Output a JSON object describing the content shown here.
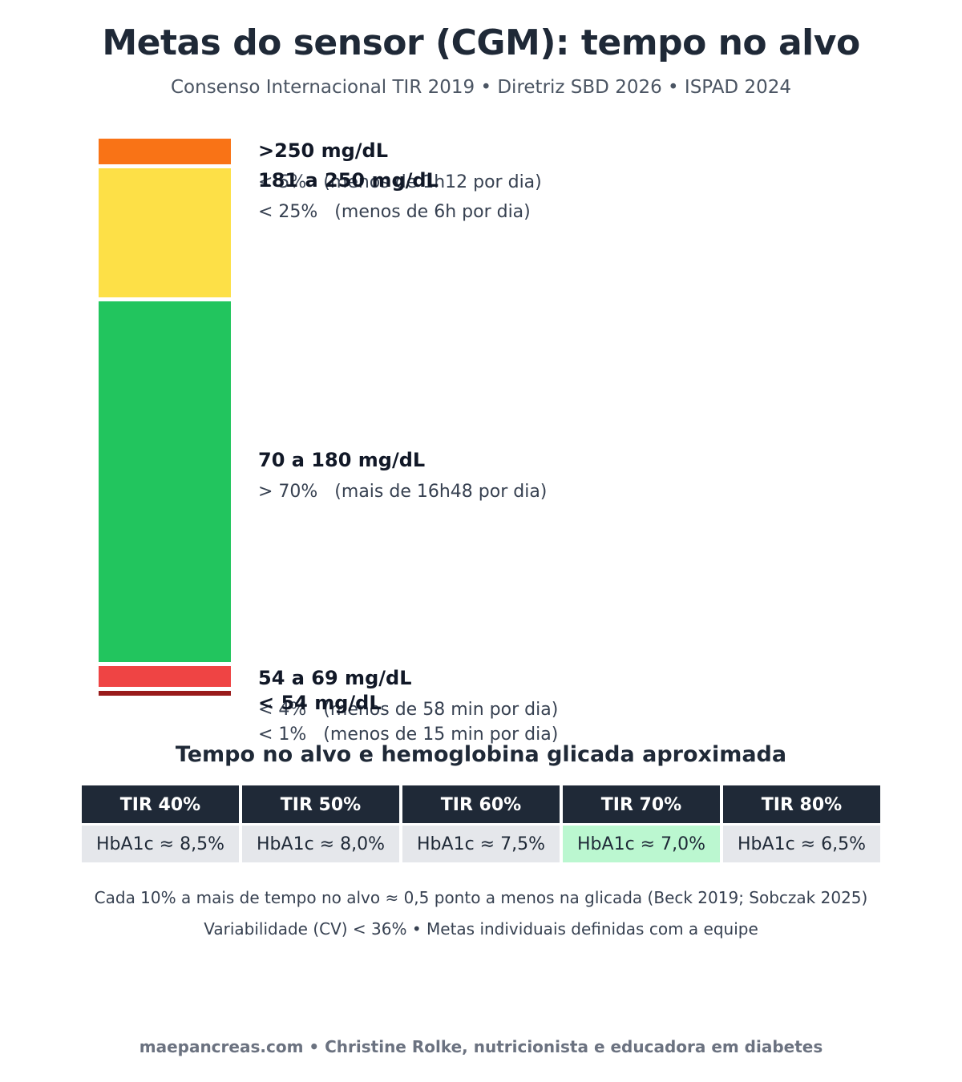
{
  "title": "Metas do sensor (CGM): tempo no alvo",
  "subtitle": "Consenso Internacional TIR 2019 • Diretriz SBD 2026 • ISPAD 2024",
  "chart_data": {
    "type": "bar",
    "stacked": true,
    "segments": [
      {
        "range": ">250 mg/dL",
        "target": "< 5%   (menos de 1h12 por dia)",
        "value": 5,
        "color": "#f97316"
      },
      {
        "range": "181 a 250 mg/dL",
        "target": "< 25%   (menos de 6h por dia)",
        "value": 25,
        "color": "#fde047"
      },
      {
        "range": "70 a 180 mg/dL",
        "target": "> 70%   (mais de 16h48 por dia)",
        "value": 70,
        "color": "#22c55e"
      },
      {
        "range": "54 a 69 mg/dL",
        "target": "< 4%   (menos de 58 min por dia)",
        "value": 4,
        "color": "#ef4444"
      },
      {
        "range": "< 54 mg/dL",
        "target": "< 1%   (menos de 15 min por dia)",
        "value": 1,
        "color": "#991b1b"
      }
    ]
  },
  "table": {
    "title": "Tempo no alvo e hemoglobina glicada aproximada",
    "headers": [
      "TIR 40%",
      "TIR 50%",
      "TIR 60%",
      "TIR 70%",
      "TIR 80%"
    ],
    "values": [
      "HbA1c ≈ 8,5%",
      "HbA1c ≈ 8,0%",
      "HbA1c ≈ 7,5%",
      "HbA1c ≈ 7,0%",
      "HbA1c ≈ 6,5%"
    ],
    "highlight_color": "#bbf7d0"
  },
  "notes": {
    "line1": "Cada 10% a mais de tempo no alvo ≈ 0,5 ponto a menos na glicada (Beck 2019; Sobczak 2025)",
    "line2": "Variabilidade (CV) < 36%  •  Metas individuais definidas com a equipe"
  },
  "footer": "maepancreas.com  •  Christine Rolke, nutricionista e educadora em diabetes"
}
